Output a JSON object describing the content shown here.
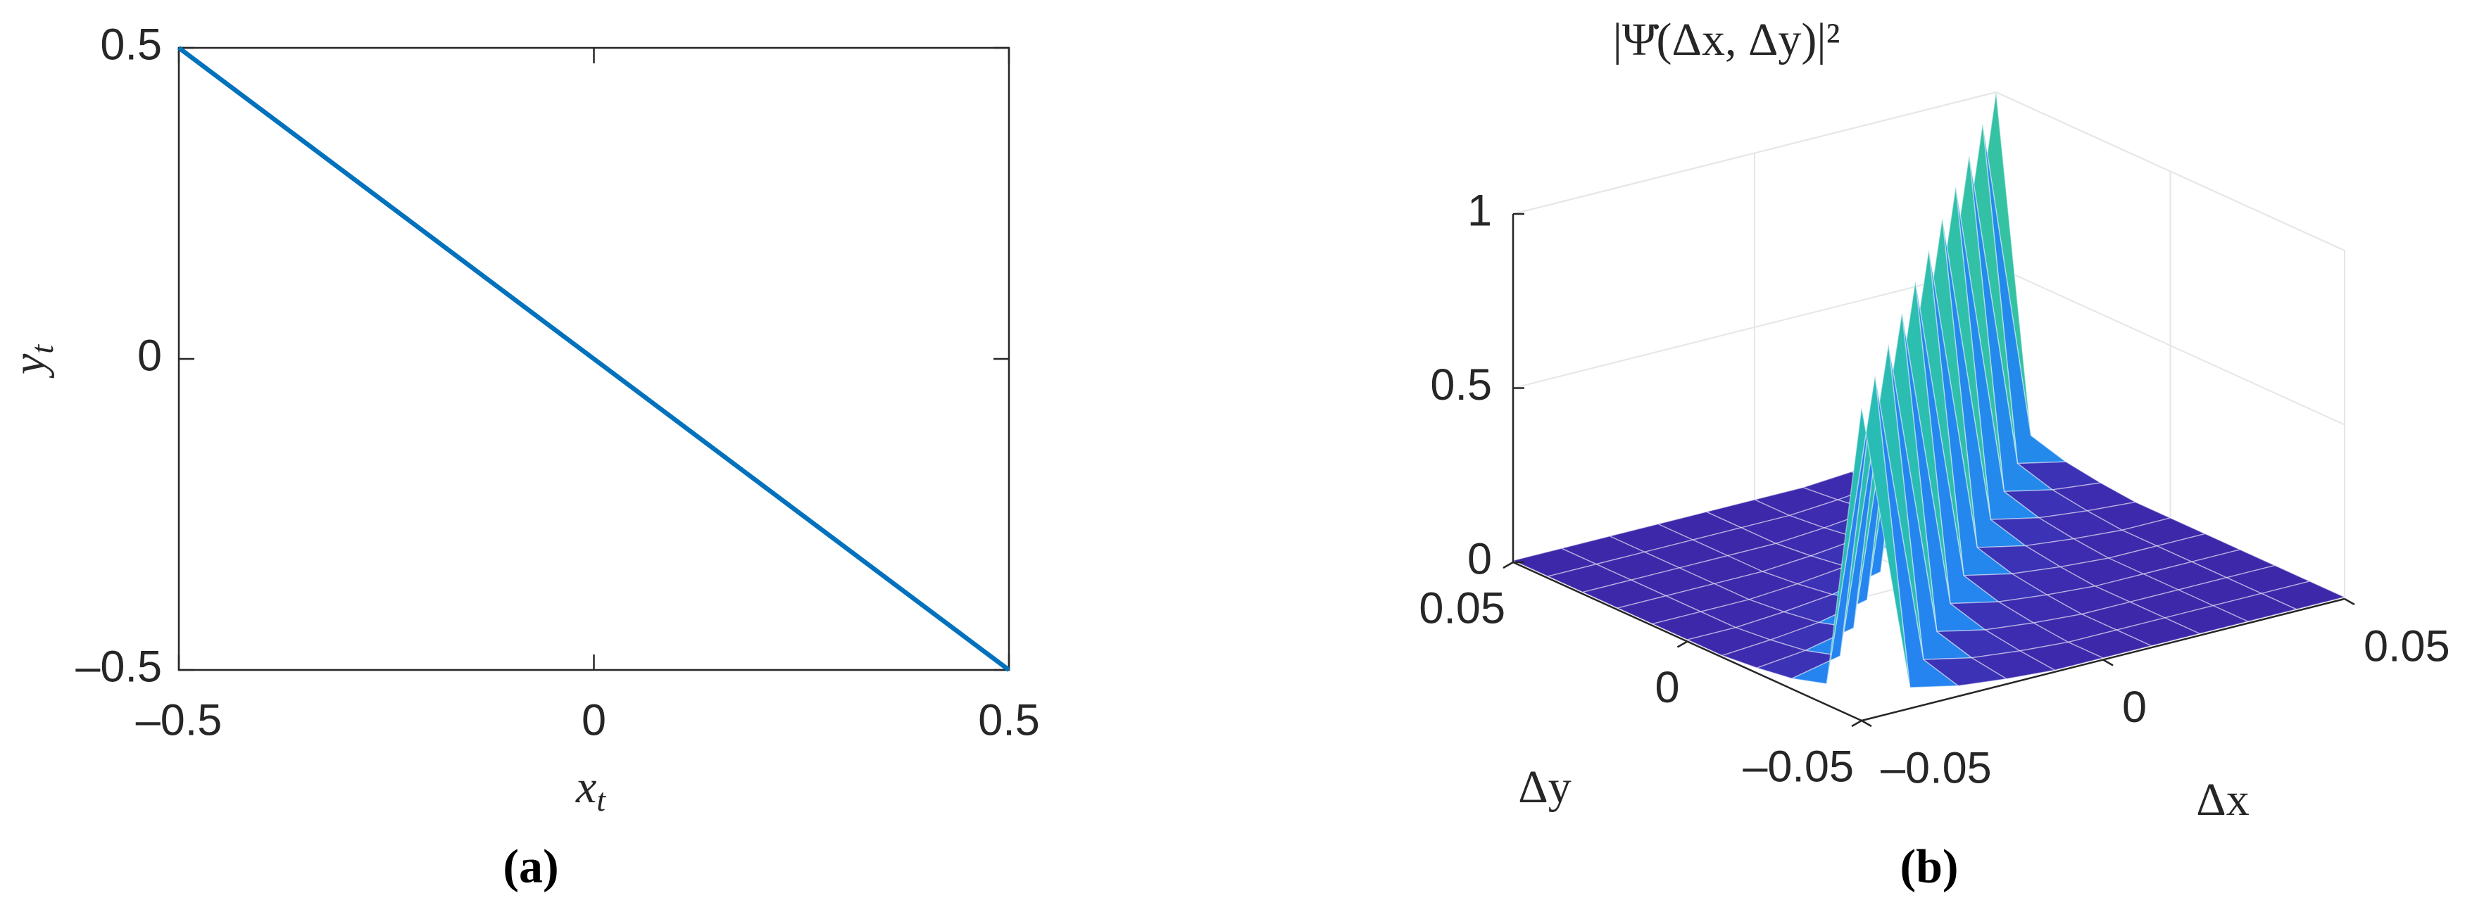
{
  "chart_data": [
    {
      "type": "line",
      "x": [
        -0.5,
        0.5
      ],
      "values": [
        0.5,
        -0.5
      ],
      "color": "#0072bd",
      "xlim": [
        -0.5,
        0.5
      ],
      "ylim": [
        -0.5,
        0.5
      ],
      "xticks": [
        {
          "value": -0.5,
          "label": "–0.5"
        },
        0,
        0.5
      ],
      "yticks": [
        {
          "value": -0.5,
          "label": "–0.5"
        },
        0,
        0.5
      ],
      "xlabel": {
        "text": "x",
        "subscript": "t"
      },
      "ylabel": {
        "text": "y",
        "subscript": "t"
      },
      "grid": false,
      "panel_label": "(a)"
    },
    {
      "type": "surface",
      "title": "|Ψ̇(Δx, Δy)|²",
      "x": [
        -0.05,
        -0.04,
        -0.03,
        -0.02,
        -0.01,
        0,
        0.01,
        0.02,
        0.03,
        0.04,
        0.05
      ],
      "y": [
        -0.05,
        -0.04,
        -0.03,
        -0.02,
        -0.01,
        0,
        0.01,
        0.02,
        0.03,
        0.04,
        0.05
      ],
      "z": [
        [
          0.9,
          0.06,
          0.03,
          0.015,
          0.005,
          0.005,
          0.005,
          0.005,
          0.005,
          0.005,
          0.005
        ],
        [
          0.06,
          0.91,
          0.06,
          0.03,
          0.015,
          0.005,
          0.005,
          0.005,
          0.005,
          0.005,
          0.005
        ],
        [
          0.03,
          0.06,
          0.92,
          0.06,
          0.03,
          0.015,
          0.005,
          0.005,
          0.005,
          0.005,
          0.005
        ],
        [
          0.015,
          0.03,
          0.06,
          0.93,
          0.06,
          0.03,
          0.015,
          0.005,
          0.005,
          0.005,
          0.005
        ],
        [
          0.005,
          0.015,
          0.03,
          0.06,
          0.94,
          0.06,
          0.03,
          0.015,
          0.005,
          0.005,
          0.005
        ],
        [
          0.005,
          0.005,
          0.015,
          0.03,
          0.06,
          0.95,
          0.06,
          0.03,
          0.015,
          0.005,
          0.005
        ],
        [
          0.005,
          0.005,
          0.005,
          0.015,
          0.03,
          0.06,
          0.96,
          0.06,
          0.03,
          0.015,
          0.005
        ],
        [
          0.005,
          0.005,
          0.005,
          0.005,
          0.015,
          0.03,
          0.06,
          0.97,
          0.06,
          0.03,
          0.015
        ],
        [
          0.005,
          0.005,
          0.005,
          0.005,
          0.005,
          0.015,
          0.03,
          0.06,
          0.98,
          0.06,
          0.03
        ],
        [
          0.005,
          0.005,
          0.005,
          0.005,
          0.005,
          0.005,
          0.015,
          0.03,
          0.06,
          0.99,
          0.06
        ],
        [
          0.005,
          0.005,
          0.005,
          0.005,
          0.005,
          0.005,
          0.005,
          0.015,
          0.03,
          0.06,
          1.0
        ]
      ],
      "xlim": [
        -0.05,
        0.05
      ],
      "ylim": [
        -0.05,
        0.05
      ],
      "zlim": [
        0,
        1
      ],
      "xticks": [
        {
          "value": -0.05,
          "label": "–0.05"
        },
        0,
        0.05
      ],
      "yticks": [
        {
          "value": -0.05,
          "label": "–0.05"
        },
        0,
        0.05
      ],
      "zticks": [
        0,
        0.5,
        1
      ],
      "xlabel": "Δx",
      "ylabel": "Δy",
      "colormap": [
        "#3e26a8",
        "#2f6efc",
        "#12b1d6",
        "#48cb86",
        "#d4bb2f",
        "#f9fb0e"
      ],
      "grid": true,
      "panel_label": "(b)"
    }
  ]
}
